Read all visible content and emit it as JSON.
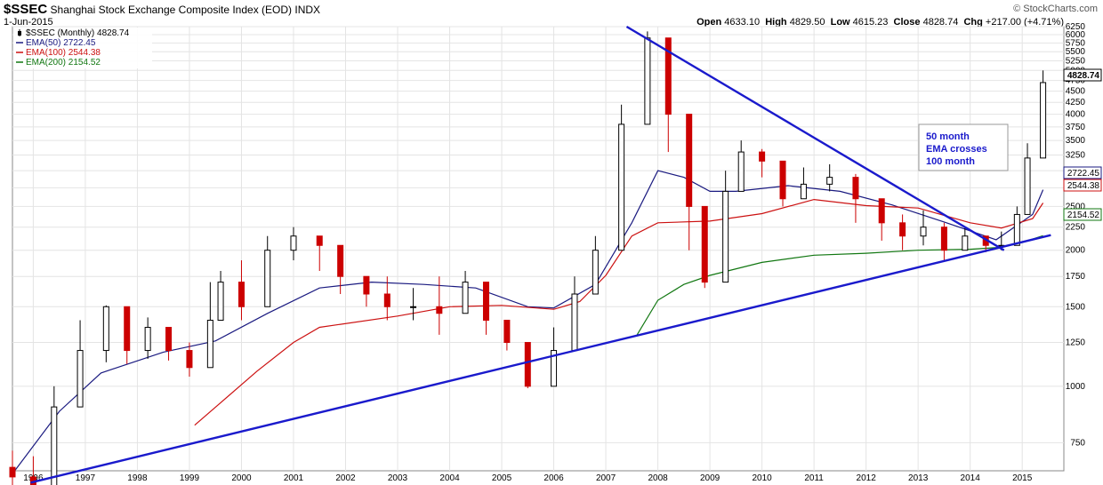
{
  "header": {
    "symbol": "$SSEC",
    "name": "Shanghai Stock Exchange Composite Index (EOD)",
    "exchange": "INDX",
    "date": "1-Jun-2015",
    "brand": "© StockCharts.com",
    "ohlc": {
      "open_label": "Open",
      "open": "4633.10",
      "high_label": "High",
      "high": "4829.50",
      "low_label": "Low",
      "low": "4615.23",
      "close_label": "Close",
      "close": "4828.74",
      "chg_label": "Chg",
      "chg": "+217.00 (+4.71%)"
    }
  },
  "colors": {
    "up": "#000000",
    "down": "#cc0000",
    "ema50": "#1a1a80",
    "ema100": "#cc1111",
    "ema200": "#117711",
    "trendline": "#1a1acc",
    "grid": "#e4e4e4"
  },
  "chart_data": {
    "type": "line",
    "title": "$SSEC Shanghai Stock Exchange Composite Index (EOD) INDX",
    "scale": "log",
    "ylim": [
      650,
      6250
    ],
    "xlim": [
      1995.6,
      2015.8
    ],
    "y_ticks": [
      750,
      1000,
      1250,
      1500,
      1750,
      2000,
      2250,
      2500,
      2750,
      3000,
      3250,
      3500,
      3750,
      4000,
      4250,
      4500,
      4750,
      5000,
      5250,
      5500,
      5750,
      6000,
      6250
    ],
    "x_ticks": [
      "1996",
      "1997",
      "1998",
      "1999",
      "2000",
      "2001",
      "2002",
      "2003",
      "2004",
      "2005",
      "2006",
      "2007",
      "2008",
      "2009",
      "2010",
      "2011",
      "2012",
      "2013",
      "2014",
      "2015"
    ],
    "legend_placement": "top-left",
    "legend": [
      {
        "name": "$SSEC (Monthly)",
        "value": "4828.74",
        "icon": "candle-icon"
      },
      {
        "name": "EMA(50)",
        "value": "2722.45"
      },
      {
        "name": "EMA(100)",
        "value": "2544.38"
      },
      {
        "name": "EMA(200)",
        "value": "2154.52"
      }
    ],
    "last_value_labels": [
      {
        "value": "4828.74",
        "series": "price"
      },
      {
        "value": "2722.45",
        "series": "ema50"
      },
      {
        "value": "2544.38",
        "series": "ema100"
      },
      {
        "value": "2154.52",
        "series": "ema200"
      }
    ],
    "series": [
      {
        "name": "$SSEC (Monthly)",
        "style": "candles",
        "x": [
          1995.6,
          1996.0,
          1996.4,
          1996.9,
          1997.4,
          1997.8,
          1998.2,
          1998.6,
          1999.0,
          1999.4,
          1999.6,
          2000.0,
          2000.5,
          2001.0,
          2001.5,
          2001.9,
          2002.4,
          2002.8,
          2003.3,
          2003.8,
          2004.3,
          2004.7,
          2005.1,
          2005.5,
          2006.0,
          2006.4,
          2006.8,
          2007.3,
          2007.8,
          2008.2,
          2008.6,
          2008.9,
          2009.3,
          2009.6,
          2010.0,
          2010.4,
          2010.8,
          2011.3,
          2011.8,
          2012.3,
          2012.7,
          2013.1,
          2013.5,
          2013.9,
          2014.3,
          2014.6,
          2014.9,
          2015.1,
          2015.4
        ],
        "values": [
          630,
          540,
          900,
          1200,
          1500,
          1200,
          1350,
          1200,
          1100,
          1400,
          1700,
          1500,
          2000,
          2150,
          2050,
          1750,
          1600,
          1500,
          1500,
          1450,
          1700,
          1400,
          1250,
          1000,
          1200,
          1600,
          2000,
          3800,
          5900,
          4000,
          2500,
          1700,
          2700,
          3300,
          3150,
          2600,
          2800,
          2900,
          2600,
          2300,
          2150,
          2250,
          2000,
          2150,
          2050,
          2050,
          2400,
          3200,
          4700
        ],
        "low": [
          560,
          520,
          780,
          1000,
          1130,
          1120,
          1150,
          1140,
          1050,
          1300,
          1400,
          1400,
          1800,
          1900,
          1800,
          1600,
          1500,
          1400,
          1400,
          1300,
          1500,
          1300,
          1200,
          990,
          1100,
          1500,
          1800,
          3100,
          5000,
          3300,
          2000,
          1650,
          2400,
          2800,
          2900,
          2500,
          2700,
          2700,
          2300,
          2100,
          2000,
          2050,
          1900,
          2000,
          1980,
          2000,
          2300,
          3000,
          4400
        ],
        "high": [
          720,
          700,
          1000,
          1400,
          1510,
          1450,
          1420,
          1350,
          1250,
          1700,
          1800,
          1900,
          2150,
          2250,
          2150,
          2000,
          1700,
          1750,
          1650,
          1750,
          1800,
          1600,
          1300,
          1150,
          1350,
          1750,
          2150,
          4200,
          6100,
          5200,
          3000,
          2250,
          3000,
          3500,
          3350,
          3100,
          3050,
          3100,
          2950,
          2500,
          2400,
          2450,
          2300,
          2250,
          2150,
          2200,
          2500,
          3450,
          5000
        ]
      },
      {
        "name": "EMA(50)",
        "x": [
          1995.6,
          1996.5,
          1997.3,
          1998.5,
          1999.5,
          2000.5,
          2001.5,
          2002.5,
          2003.5,
          2004.5,
          2005.5,
          2006.0,
          2006.8,
          2007.5,
          2008.0,
          2008.5,
          2009.0,
          2009.5,
          2010.5,
          2011.5,
          2012.5,
          2013.5,
          2014.5,
          2015.2,
          2015.4
        ],
        "values": [
          640,
          880,
          1070,
          1190,
          1260,
          1450,
          1650,
          1700,
          1680,
          1650,
          1500,
          1490,
          1680,
          2300,
          3000,
          2900,
          2700,
          2700,
          2780,
          2700,
          2520,
          2310,
          2110,
          2400,
          2722.45
        ]
      },
      {
        "name": "EMA(100)",
        "x": [
          1999.1,
          1999.6,
          2000.3,
          2001.0,
          2001.5,
          2003.0,
          2004.0,
          2005.0,
          2006.0,
          2006.5,
          2007.0,
          2007.5,
          2008.0,
          2009.0,
          2010.0,
          2011.0,
          2012.0,
          2013.0,
          2014.0,
          2014.6,
          2015.2,
          2015.4
        ],
        "values": [
          820,
          920,
          1080,
          1250,
          1350,
          1430,
          1500,
          1510,
          1480,
          1540,
          1760,
          2150,
          2300,
          2320,
          2410,
          2590,
          2510,
          2480,
          2300,
          2240,
          2350,
          2544.38
        ]
      },
      {
        "name": "EMA(200)",
        "x": [
          2007.6,
          2008.0,
          2008.5,
          2009.0,
          2010.0,
          2011.0,
          2012.0,
          2013.0,
          2014.0,
          2014.6,
          2015.0,
          2015.4
        ],
        "values": [
          1300,
          1550,
          1680,
          1760,
          1880,
          1950,
          1970,
          2000,
          2010,
          2030,
          2080,
          2154.52
        ]
      },
      {
        "name": "Trendline A",
        "x": [
          1995.95,
          2015.55
        ],
        "values": [
          612,
          2160
        ]
      },
      {
        "name": "Trendline B",
        "x": [
          2007.4,
          2014.65
        ],
        "values": [
          6250,
          2000
        ]
      }
    ],
    "annotations": [
      {
        "lines": [
          "50 month",
          "EMA crosses",
          "100 month"
        ]
      }
    ]
  }
}
